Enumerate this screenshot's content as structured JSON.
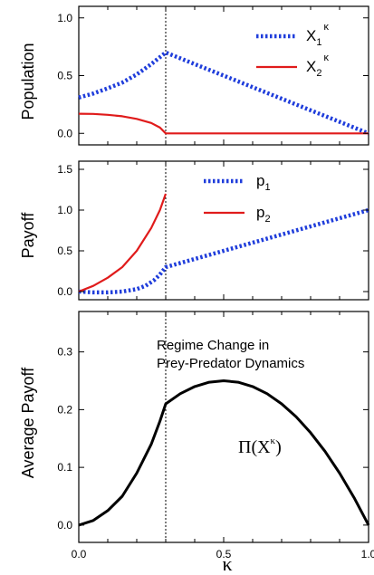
{
  "chart_data": [
    {
      "type": "line",
      "ylabel": "Population",
      "xlim": [
        0,
        1
      ],
      "ylim": [
        -0.1,
        1.1
      ],
      "yticks": [
        "0.0",
        "0.5",
        "1.0"
      ],
      "legend_position": "top-right",
      "regime_change_x": 0.3,
      "series": [
        {
          "name": "X1κ",
          "name_base": "X",
          "name_sub": "1",
          "name_sup": "κ",
          "color": "#1f3ddb",
          "style": "dotted",
          "x": [
            0.0,
            0.05,
            0.1,
            0.15,
            0.2,
            0.25,
            0.3,
            0.4,
            0.5,
            0.6,
            0.7,
            0.8,
            0.9,
            1.0
          ],
          "y": [
            0.31,
            0.345,
            0.39,
            0.44,
            0.51,
            0.6,
            0.7,
            0.6,
            0.5,
            0.4,
            0.3,
            0.2,
            0.1,
            0.0
          ]
        },
        {
          "name": "X2κ",
          "name_base": "X",
          "name_sub": "2",
          "name_sup": "κ",
          "color": "#e01b1b",
          "style": "solid",
          "x": [
            0.0,
            0.05,
            0.1,
            0.15,
            0.2,
            0.25,
            0.28,
            0.3,
            1.0
          ],
          "y": [
            0.17,
            0.168,
            0.16,
            0.148,
            0.125,
            0.09,
            0.05,
            0.0,
            0.0
          ]
        }
      ]
    },
    {
      "type": "line",
      "ylabel": "Payoff",
      "xlim": [
        0,
        1
      ],
      "ylim": [
        -0.1,
        1.6
      ],
      "yticks": [
        "0.0",
        "0.5",
        "1.0",
        "1.5"
      ],
      "legend_position": "top-center",
      "regime_change_x": 0.3,
      "series": [
        {
          "name": "p1",
          "name_base": "p",
          "name_sub": "1",
          "color": "#1f3ddb",
          "style": "dotted",
          "x": [
            0.0,
            0.05,
            0.1,
            0.15,
            0.2,
            0.23,
            0.26,
            0.28,
            0.3,
            0.4,
            0.5,
            0.6,
            0.7,
            0.8,
            0.9,
            1.0
          ],
          "y": [
            0.0,
            -0.01,
            -0.01,
            0.0,
            0.03,
            0.07,
            0.14,
            0.21,
            0.3,
            0.4,
            0.5,
            0.6,
            0.7,
            0.8,
            0.9,
            1.0
          ]
        },
        {
          "name": "p2",
          "name_base": "p",
          "name_sub": "2",
          "color": "#e01b1b",
          "style": "solid",
          "x": [
            0.0,
            0.05,
            0.1,
            0.15,
            0.2,
            0.25,
            0.28,
            0.3
          ],
          "y": [
            0.0,
            0.07,
            0.17,
            0.3,
            0.5,
            0.78,
            1.0,
            1.2
          ]
        }
      ]
    },
    {
      "type": "line",
      "ylabel": "Average Payoff",
      "xlabel": "κ",
      "xlim": [
        0,
        1
      ],
      "ylim": [
        -0.03,
        0.37
      ],
      "xticks": [
        "0.0",
        "0.5",
        "1.0"
      ],
      "yticks": [
        "0.0",
        "0.1",
        "0.2",
        "0.3"
      ],
      "regime_change_x": 0.3,
      "annotation": [
        "Regime Change in",
        "Prey-Predator Dynamics"
      ],
      "series": [
        {
          "name": "Π(Xκ)",
          "name_base": "Π(X",
          "name_sup": "κ",
          "name_tail": ")",
          "color": "#000000",
          "style": "solid",
          "x": [
            0.0,
            0.05,
            0.1,
            0.15,
            0.2,
            0.25,
            0.28,
            0.3,
            0.35,
            0.4,
            0.45,
            0.5,
            0.55,
            0.6,
            0.65,
            0.7,
            0.75,
            0.8,
            0.85,
            0.9,
            0.95,
            1.0
          ],
          "y": [
            0.0,
            0.008,
            0.025,
            0.05,
            0.09,
            0.14,
            0.18,
            0.21,
            0.2275,
            0.24,
            0.2475,
            0.25,
            0.2475,
            0.24,
            0.2275,
            0.21,
            0.1875,
            0.16,
            0.1275,
            0.09,
            0.0475,
            0.0
          ]
        }
      ]
    }
  ]
}
